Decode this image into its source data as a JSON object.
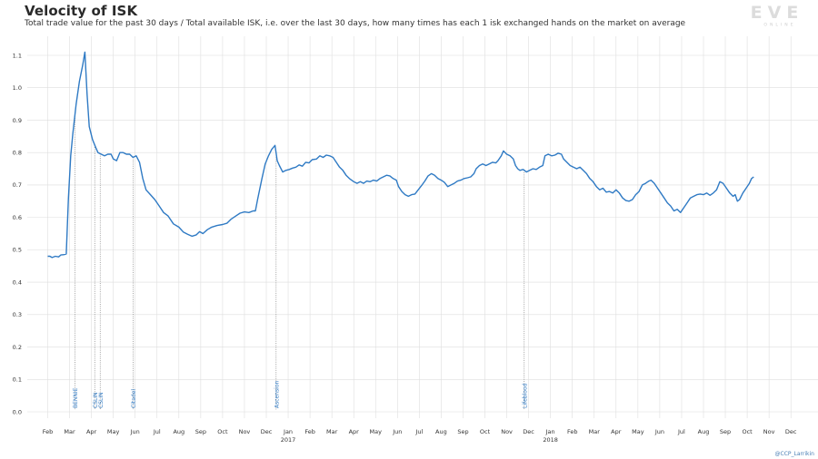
{
  "chart_data": {
    "type": "line",
    "title": "Velocity of ISK",
    "subtitle": "Total trade value for the past 30 days / Total available ISK, i.e. over the last 30 days, how many times has each 1 isk exchanged hands on the market on average",
    "xlabel": "",
    "ylabel": "",
    "ylim": [
      0.0,
      1.1
    ],
    "yticks": [
      "0.0",
      "0.1",
      "0.2",
      "0.3",
      "0.4",
      "0.5",
      "0.6",
      "0.7",
      "0.8",
      "0.9",
      "1.0",
      "1.1"
    ],
    "xticks": [
      {
        "label": "Feb",
        "year": ""
      },
      {
        "label": "Mar",
        "year": ""
      },
      {
        "label": "Apr",
        "year": ""
      },
      {
        "label": "May",
        "year": ""
      },
      {
        "label": "Jun",
        "year": ""
      },
      {
        "label": "Jul",
        "year": ""
      },
      {
        "label": "Aug",
        "year": ""
      },
      {
        "label": "Sep",
        "year": ""
      },
      {
        "label": "Oct",
        "year": ""
      },
      {
        "label": "Nov",
        "year": ""
      },
      {
        "label": "Dec",
        "year": ""
      },
      {
        "label": "Jan",
        "year": "2017"
      },
      {
        "label": "Feb",
        "year": ""
      },
      {
        "label": "Mar",
        "year": ""
      },
      {
        "label": "Apr",
        "year": ""
      },
      {
        "label": "May",
        "year": ""
      },
      {
        "label": "Jun",
        "year": ""
      },
      {
        "label": "Jul",
        "year": ""
      },
      {
        "label": "Aug",
        "year": ""
      },
      {
        "label": "Sep",
        "year": ""
      },
      {
        "label": "Oct",
        "year": ""
      },
      {
        "label": "Nov",
        "year": ""
      },
      {
        "label": "Dec",
        "year": ""
      },
      {
        "label": "Jan",
        "year": "2018"
      },
      {
        "label": "Feb",
        "year": ""
      },
      {
        "label": "Mar",
        "year": ""
      },
      {
        "label": "Apr",
        "year": ""
      },
      {
        "label": "May",
        "year": ""
      },
      {
        "label": "Jun",
        "year": ""
      },
      {
        "label": "Jul",
        "year": ""
      },
      {
        "label": "Aug",
        "year": ""
      },
      {
        "label": "Sep",
        "year": ""
      },
      {
        "label": "Oct",
        "year": ""
      },
      {
        "label": "Nov",
        "year": ""
      },
      {
        "label": "Dec",
        "year": ""
      }
    ],
    "grid": true,
    "legend": "none",
    "series_color": "#2f7ac4",
    "events": [
      {
        "label": "BENNIE",
        "x": 1.25
      },
      {
        "label": "CSLIN",
        "x": 2.15
      },
      {
        "label": "CSLIN",
        "x": 2.4
      },
      {
        "label": "Citadel",
        "x": 3.9
      },
      {
        "label": "Ascension",
        "x": 10.45
      },
      {
        "label": "Lifeblood",
        "x": 21.8
      }
    ],
    "series": [
      {
        "values": [
          [
            0.0,
            0.48
          ],
          [
            0.1,
            0.48
          ],
          [
            0.2,
            0.476
          ],
          [
            0.35,
            0.48
          ],
          [
            0.5,
            0.478
          ],
          [
            0.6,
            0.484
          ],
          [
            0.75,
            0.485
          ],
          [
            0.85,
            0.487
          ],
          [
            0.95,
            0.66
          ],
          [
            1.05,
            0.79
          ],
          [
            1.15,
            0.86
          ],
          [
            1.3,
            0.95
          ],
          [
            1.45,
            1.02
          ],
          [
            1.6,
            1.07
          ],
          [
            1.7,
            1.11
          ],
          [
            1.8,
            0.98
          ],
          [
            1.9,
            0.88
          ],
          [
            2.05,
            0.84
          ],
          [
            2.2,
            0.815
          ],
          [
            2.3,
            0.8
          ],
          [
            2.45,
            0.795
          ],
          [
            2.6,
            0.79
          ],
          [
            2.75,
            0.795
          ],
          [
            2.9,
            0.795
          ],
          [
            3.0,
            0.78
          ],
          [
            3.15,
            0.775
          ],
          [
            3.3,
            0.8
          ],
          [
            3.45,
            0.8
          ],
          [
            3.6,
            0.795
          ],
          [
            3.75,
            0.795
          ],
          [
            3.9,
            0.785
          ],
          [
            4.05,
            0.79
          ],
          [
            4.2,
            0.77
          ],
          [
            4.35,
            0.72
          ],
          [
            4.5,
            0.685
          ],
          [
            4.7,
            0.67
          ],
          [
            4.9,
            0.655
          ],
          [
            5.1,
            0.635
          ],
          [
            5.3,
            0.615
          ],
          [
            5.5,
            0.605
          ],
          [
            5.75,
            0.58
          ],
          [
            6.0,
            0.57
          ],
          [
            6.2,
            0.555
          ],
          [
            6.4,
            0.548
          ],
          [
            6.6,
            0.542
          ],
          [
            6.8,
            0.546
          ],
          [
            6.95,
            0.556
          ],
          [
            7.1,
            0.55
          ],
          [
            7.3,
            0.562
          ],
          [
            7.5,
            0.57
          ],
          [
            7.75,
            0.575
          ],
          [
            8.0,
            0.578
          ],
          [
            8.2,
            0.582
          ],
          [
            8.4,
            0.595
          ],
          [
            8.6,
            0.604
          ],
          [
            8.8,
            0.613
          ],
          [
            9.0,
            0.617
          ],
          [
            9.2,
            0.615
          ],
          [
            9.4,
            0.62
          ],
          [
            9.5,
            0.62
          ],
          [
            9.6,
            0.655
          ],
          [
            9.8,
            0.72
          ],
          [
            9.95,
            0.765
          ],
          [
            10.1,
            0.79
          ],
          [
            10.25,
            0.81
          ],
          [
            10.4,
            0.822
          ],
          [
            10.5,
            0.775
          ],
          [
            10.6,
            0.76
          ],
          [
            10.75,
            0.74
          ],
          [
            10.9,
            0.745
          ],
          [
            11.05,
            0.748
          ],
          [
            11.2,
            0.752
          ],
          [
            11.35,
            0.755
          ],
          [
            11.5,
            0.762
          ],
          [
            11.65,
            0.758
          ],
          [
            11.8,
            0.77
          ],
          [
            11.95,
            0.768
          ],
          [
            12.1,
            0.778
          ],
          [
            12.3,
            0.78
          ],
          [
            12.45,
            0.79
          ],
          [
            12.6,
            0.785
          ],
          [
            12.75,
            0.792
          ],
          [
            12.9,
            0.79
          ],
          [
            13.05,
            0.785
          ],
          [
            13.2,
            0.77
          ],
          [
            13.35,
            0.755
          ],
          [
            13.5,
            0.745
          ],
          [
            13.65,
            0.73
          ],
          [
            13.8,
            0.72
          ],
          [
            14.0,
            0.71
          ],
          [
            14.15,
            0.705
          ],
          [
            14.3,
            0.71
          ],
          [
            14.45,
            0.705
          ],
          [
            14.6,
            0.712
          ],
          [
            14.75,
            0.71
          ],
          [
            14.9,
            0.715
          ],
          [
            15.05,
            0.712
          ],
          [
            15.2,
            0.72
          ],
          [
            15.35,
            0.725
          ],
          [
            15.5,
            0.73
          ],
          [
            15.65,
            0.728
          ],
          [
            15.8,
            0.72
          ],
          [
            15.95,
            0.715
          ],
          [
            16.05,
            0.695
          ],
          [
            16.2,
            0.68
          ],
          [
            16.35,
            0.67
          ],
          [
            16.5,
            0.665
          ],
          [
            16.65,
            0.67
          ],
          [
            16.8,
            0.672
          ],
          [
            16.95,
            0.685
          ],
          [
            17.1,
            0.698
          ],
          [
            17.25,
            0.712
          ],
          [
            17.4,
            0.728
          ],
          [
            17.55,
            0.735
          ],
          [
            17.7,
            0.73
          ],
          [
            17.85,
            0.72
          ],
          [
            18.0,
            0.715
          ],
          [
            18.15,
            0.708
          ],
          [
            18.3,
            0.695
          ],
          [
            18.45,
            0.7
          ],
          [
            18.6,
            0.705
          ],
          [
            18.75,
            0.712
          ],
          [
            18.9,
            0.715
          ],
          [
            19.05,
            0.72
          ],
          [
            19.2,
            0.722
          ],
          [
            19.35,
            0.725
          ],
          [
            19.5,
            0.735
          ],
          [
            19.6,
            0.75
          ],
          [
            19.75,
            0.76
          ],
          [
            19.9,
            0.765
          ],
          [
            20.05,
            0.76
          ],
          [
            20.2,
            0.765
          ],
          [
            20.35,
            0.77
          ],
          [
            20.5,
            0.768
          ],
          [
            20.6,
            0.775
          ],
          [
            20.75,
            0.79
          ],
          [
            20.85,
            0.805
          ],
          [
            21.0,
            0.795
          ],
          [
            21.15,
            0.79
          ],
          [
            21.3,
            0.78
          ],
          [
            21.4,
            0.76
          ],
          [
            21.5,
            0.75
          ],
          [
            21.6,
            0.745
          ],
          [
            21.75,
            0.748
          ],
          [
            21.9,
            0.74
          ],
          [
            22.05,
            0.745
          ],
          [
            22.2,
            0.75
          ],
          [
            22.35,
            0.748
          ],
          [
            22.5,
            0.755
          ],
          [
            22.65,
            0.76
          ],
          [
            22.75,
            0.79
          ],
          [
            22.9,
            0.795
          ],
          [
            23.05,
            0.79
          ],
          [
            23.2,
            0.792
          ],
          [
            23.35,
            0.798
          ],
          [
            23.5,
            0.795
          ],
          [
            23.6,
            0.78
          ],
          [
            23.75,
            0.77
          ],
          [
            23.9,
            0.76
          ],
          [
            24.05,
            0.755
          ],
          [
            24.2,
            0.75
          ],
          [
            24.35,
            0.755
          ],
          [
            24.5,
            0.745
          ],
          [
            24.65,
            0.735
          ],
          [
            24.8,
            0.72
          ],
          [
            24.95,
            0.71
          ],
          [
            25.1,
            0.695
          ],
          [
            25.25,
            0.685
          ],
          [
            25.4,
            0.69
          ],
          [
            25.55,
            0.678
          ],
          [
            25.7,
            0.68
          ],
          [
            25.85,
            0.675
          ],
          [
            26.0,
            0.685
          ],
          [
            26.15,
            0.675
          ],
          [
            26.3,
            0.66
          ],
          [
            26.45,
            0.652
          ],
          [
            26.6,
            0.65
          ],
          [
            26.75,
            0.655
          ],
          [
            26.9,
            0.67
          ],
          [
            27.05,
            0.68
          ],
          [
            27.2,
            0.7
          ],
          [
            27.35,
            0.705
          ],
          [
            27.5,
            0.712
          ],
          [
            27.6,
            0.715
          ],
          [
            27.75,
            0.705
          ],
          [
            27.9,
            0.69
          ],
          [
            28.05,
            0.675
          ],
          [
            28.2,
            0.66
          ],
          [
            28.35,
            0.645
          ],
          [
            28.5,
            0.635
          ],
          [
            28.65,
            0.62
          ],
          [
            28.8,
            0.625
          ],
          [
            28.95,
            0.615
          ],
          [
            29.1,
            0.63
          ],
          [
            29.25,
            0.645
          ],
          [
            29.4,
            0.66
          ],
          [
            29.55,
            0.665
          ],
          [
            29.7,
            0.67
          ],
          [
            29.85,
            0.672
          ],
          [
            30.0,
            0.67
          ],
          [
            30.15,
            0.675
          ],
          [
            30.3,
            0.668
          ],
          [
            30.45,
            0.675
          ],
          [
            30.6,
            0.685
          ],
          [
            30.75,
            0.71
          ],
          [
            30.9,
            0.705
          ],
          [
            31.05,
            0.69
          ],
          [
            31.2,
            0.675
          ],
          [
            31.35,
            0.665
          ],
          [
            31.45,
            0.67
          ],
          [
            31.55,
            0.65
          ],
          [
            31.65,
            0.655
          ],
          [
            31.8,
            0.675
          ],
          [
            31.95,
            0.69
          ],
          [
            32.1,
            0.705
          ],
          [
            32.2,
            0.72
          ],
          [
            32.3,
            0.725
          ]
        ]
      }
    ]
  },
  "logo": {
    "text": "EVE",
    "subtext": "ONLINE"
  },
  "credit": "@CCP_Larrikin"
}
